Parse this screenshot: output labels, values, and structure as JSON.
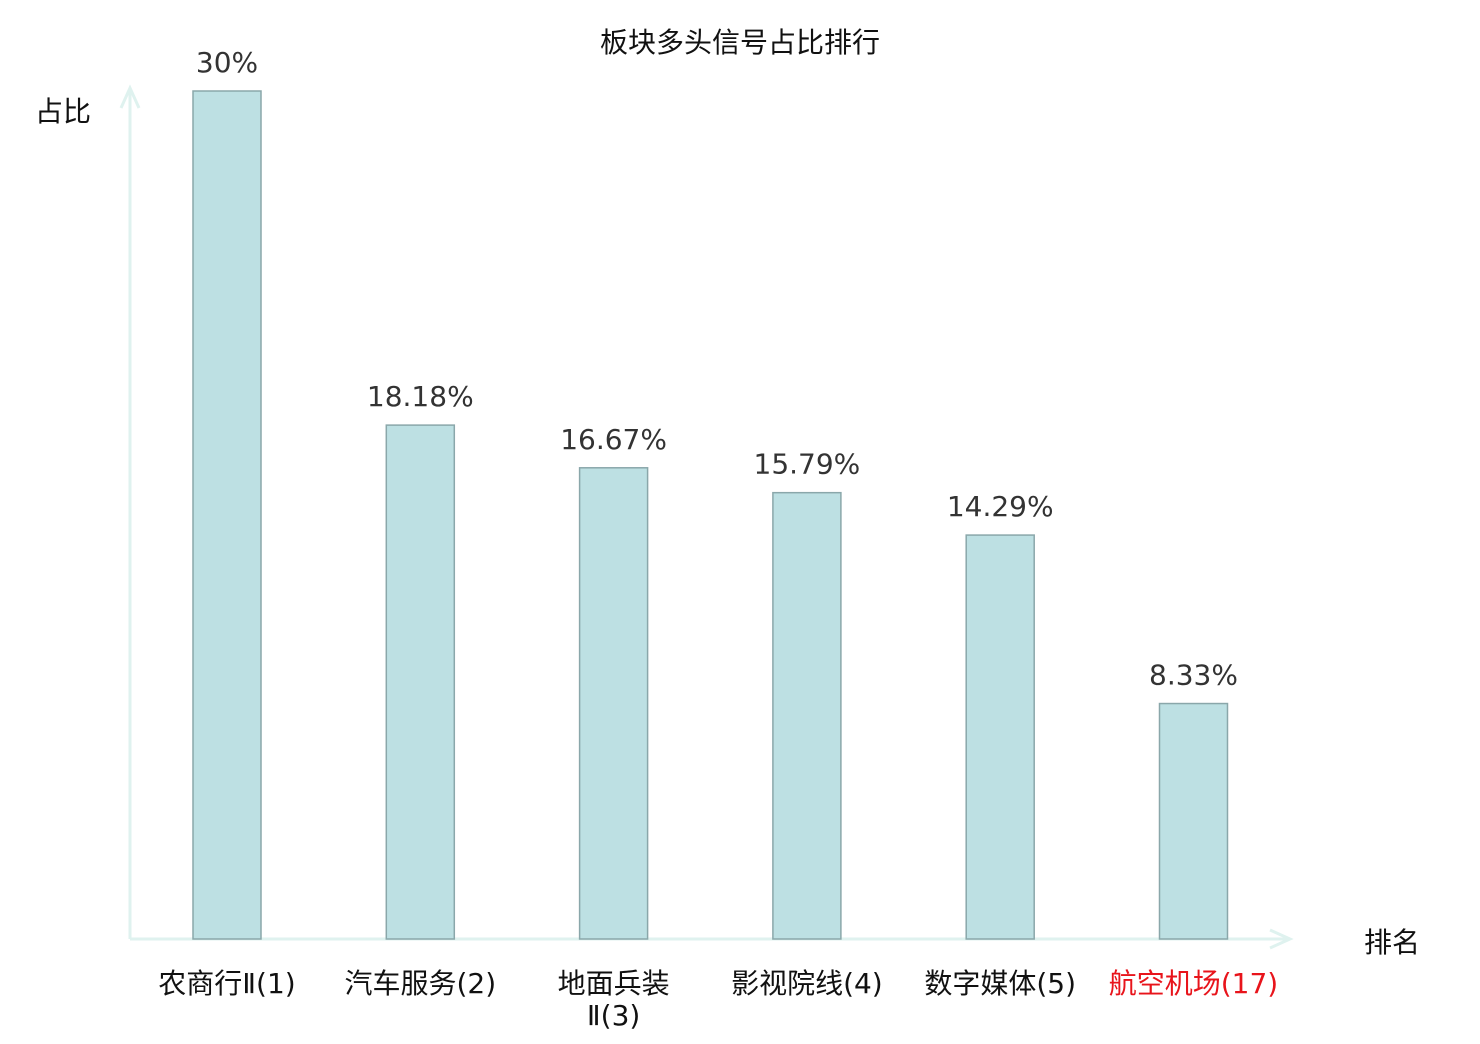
{
  "chart_data": {
    "type": "bar",
    "title": "板块多头信号占比排行",
    "xlabel": "排名",
    "ylabel": "占比",
    "categories": [
      "农商行Ⅱ(1)",
      "汽车服务(2)",
      "地面兵装Ⅱ(3)",
      "影视院线(4)",
      "数字媒体(5)",
      "航空机场(17)"
    ],
    "values": [
      30,
      18.18,
      16.67,
      15.79,
      14.29,
      8.33
    ],
    "data_labels": [
      "30%",
      "18.18%",
      "16.67%",
      "15.79%",
      "14.29%",
      "8.33%"
    ],
    "highlight_index": 5,
    "ylim": [
      0,
      30
    ],
    "grid": false,
    "colors": {
      "bar_fill": "#bde0e3",
      "bar_stroke": "#8aa7aa",
      "axis": "#dff2ef",
      "label": "#111111",
      "highlight": "#e8141b",
      "data_label": "#333333"
    }
  }
}
